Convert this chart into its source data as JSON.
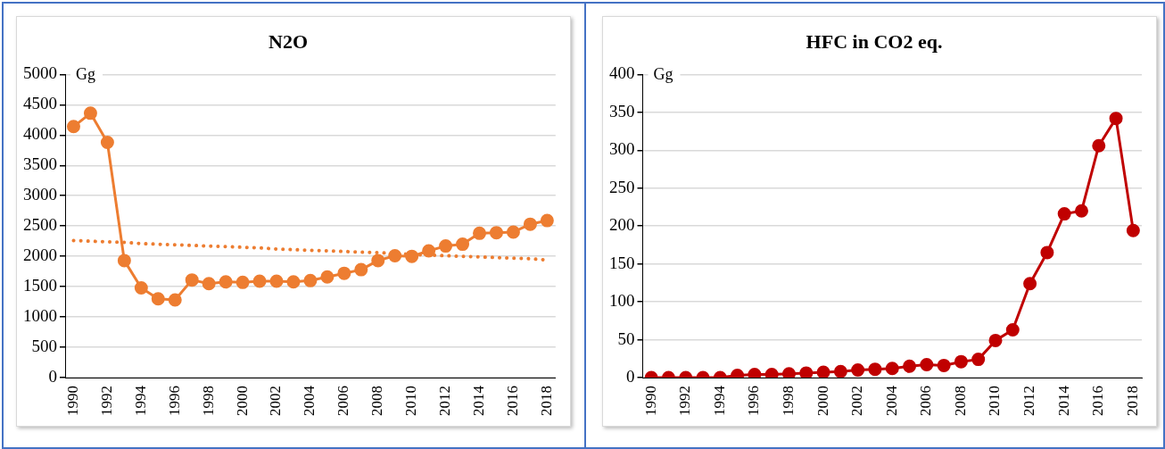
{
  "chart_data": [
    {
      "type": "line",
      "title": "N2O",
      "annotations": [
        "Gg"
      ],
      "categories": [
        "1990",
        null,
        "1992",
        null,
        "1994",
        null,
        "1996",
        null,
        "1998",
        null,
        "2000",
        null,
        "2002",
        null,
        "2004",
        null,
        "2006",
        null,
        "2008",
        null,
        "2010",
        null,
        "2012",
        null,
        "2014",
        null,
        "2016",
        null,
        "2018"
      ],
      "series": [
        {
          "color": "#ed7d31",
          "marker": "circle",
          "line_style": "solid",
          "values": [
            4140,
            4360,
            3880,
            1930,
            1480,
            1300,
            1280,
            1610,
            1550,
            1580,
            1570,
            1590,
            1590,
            1580,
            1600,
            1660,
            1720,
            1780,
            1930,
            2010,
            2000,
            2090,
            2170,
            2200,
            2380,
            2390,
            2400,
            2530,
            2590
          ]
        },
        {
          "type": "line",
          "color": "#ed7d31",
          "marker": "none",
          "line_style": "dotted",
          "values": [
            2260,
            2250,
            2240,
            2230,
            2210,
            2200,
            2190,
            2180,
            2170,
            2160,
            2150,
            2140,
            2120,
            2110,
            2100,
            2090,
            2080,
            2070,
            2060,
            2050,
            2030,
            2020,
            2010,
            2000,
            1990,
            1980,
            1970,
            1960,
            1940
          ]
        }
      ],
      "ylim": [
        0,
        5000
      ],
      "yticks": [
        0,
        500,
        1000,
        1500,
        2000,
        2500,
        3000,
        3500,
        4000,
        4500,
        5000
      ],
      "grid": "y",
      "legend": false
    },
    {
      "type": "line",
      "title": "HFC in CO2 eq.",
      "annotations": [
        "Gg"
      ],
      "categories": [
        "1990",
        null,
        "1992",
        null,
        "1994",
        null,
        "1996",
        null,
        "1998",
        null,
        "2000",
        null,
        "2002",
        null,
        "2004",
        null,
        "2006",
        null,
        "2008",
        null,
        "2010",
        null,
        "2012",
        null,
        "2014",
        null,
        "2016",
        null,
        "2018"
      ],
      "series": [
        {
          "color": "#c00000",
          "marker": "circle",
          "line_style": "solid",
          "values": [
            0,
            0,
            0,
            0,
            0,
            3,
            4,
            4,
            5,
            6,
            7,
            8,
            10,
            11,
            12,
            15,
            17,
            16,
            21,
            24,
            49,
            63,
            124,
            165,
            216,
            220,
            306,
            342,
            194
          ]
        }
      ],
      "ylim": [
        0,
        400
      ],
      "yticks": [
        0,
        50,
        100,
        150,
        200,
        250,
        300,
        350,
        400
      ],
      "grid": "y",
      "legend": false
    }
  ]
}
